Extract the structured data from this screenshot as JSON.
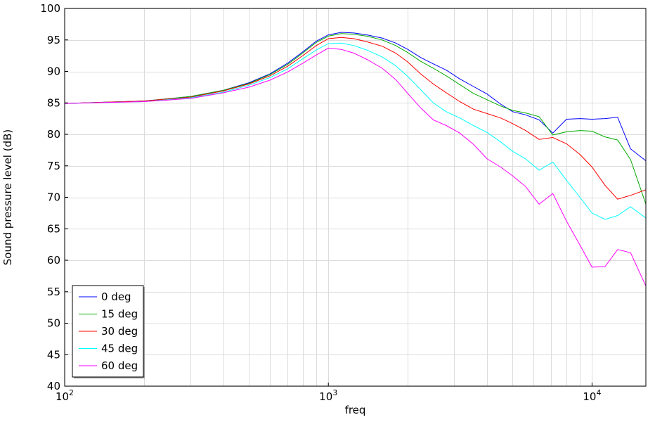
{
  "chart_data": {
    "type": "line",
    "title": "",
    "xlabel": "freq",
    "ylabel": "Sound pressure level (dB)",
    "xscale": "log",
    "xlim": [
      100,
      16000
    ],
    "ylim": [
      40,
      100
    ],
    "x_ticks": [
      {
        "value": 100,
        "base": "10",
        "exp": "2"
      },
      {
        "value": 1000,
        "base": "10",
        "exp": "3"
      },
      {
        "value": 10000,
        "base": "10",
        "exp": "4"
      }
    ],
    "y_ticks": [
      "40",
      "45",
      "50",
      "55",
      "60",
      "65",
      "70",
      "75",
      "80",
      "85",
      "90",
      "95",
      "100"
    ],
    "grid": true,
    "legend_position": "bottom-left",
    "x": [
      100,
      200,
      300,
      400,
      500,
      600,
      700,
      800,
      900,
      1000,
      1120,
      1250,
      1400,
      1600,
      1800,
      2000,
      2240,
      2500,
      2800,
      3150,
      3550,
      4000,
      4500,
      5000,
      5600,
      6300,
      7100,
      8000,
      9000,
      10000,
      11200,
      12500,
      14000,
      16000
    ],
    "series": [
      {
        "name": "0 deg",
        "color": "#0000ff",
        "values": [
          84.9,
          85.3,
          86.0,
          87.0,
          88.2,
          89.6,
          91.3,
          93.1,
          94.8,
          95.8,
          96.2,
          96.1,
          95.8,
          95.3,
          94.5,
          93.5,
          92.2,
          91.2,
          90.2,
          88.8,
          87.6,
          86.4,
          84.8,
          83.6,
          83.1,
          82.3,
          80.2,
          82.4,
          82.5,
          82.4,
          82.5,
          82.7,
          77.7,
          75.8
        ]
      },
      {
        "name": "15 deg",
        "color": "#00aa00",
        "values": [
          84.9,
          85.3,
          86.0,
          87.0,
          88.1,
          89.5,
          91.1,
          92.9,
          94.6,
          95.6,
          96.0,
          95.9,
          95.6,
          95.0,
          94.1,
          93.0,
          91.6,
          90.5,
          89.3,
          87.9,
          86.5,
          85.5,
          84.5,
          83.8,
          83.4,
          82.8,
          79.9,
          80.4,
          80.6,
          80.5,
          79.6,
          79.1,
          76.0,
          68.9
        ]
      },
      {
        "name": "30 deg",
        "color": "#ff0000",
        "values": [
          84.9,
          85.3,
          85.9,
          86.9,
          88.0,
          89.3,
          90.8,
          92.5,
          94.1,
          95.2,
          95.4,
          95.2,
          94.7,
          94.0,
          92.9,
          91.5,
          89.6,
          88.0,
          86.6,
          85.2,
          84.0,
          83.3,
          82.6,
          81.7,
          80.6,
          79.2,
          79.5,
          78.5,
          76.8,
          74.8,
          71.9,
          69.7,
          70.3,
          71.2
        ]
      },
      {
        "name": "45 deg",
        "color": "#00ffff",
        "values": [
          84.9,
          85.2,
          85.8,
          86.7,
          87.8,
          89.0,
          90.4,
          92.0,
          93.4,
          94.4,
          94.5,
          94.1,
          93.4,
          92.3,
          90.9,
          89.2,
          87.1,
          85.0,
          83.6,
          82.6,
          81.4,
          80.3,
          78.8,
          77.3,
          76.1,
          74.3,
          75.6,
          72.7,
          70.0,
          67.5,
          66.5,
          67.1,
          68.5,
          66.7
        ]
      },
      {
        "name": "60 deg",
        "color": "#ff00ff",
        "values": [
          84.9,
          85.2,
          85.7,
          86.6,
          87.5,
          88.6,
          89.9,
          91.3,
          92.6,
          93.7,
          93.5,
          92.9,
          91.9,
          90.5,
          88.7,
          86.5,
          84.2,
          82.3,
          81.4,
          80.2,
          78.4,
          76.1,
          74.8,
          73.4,
          71.7,
          68.9,
          70.6,
          66.2,
          62.4,
          58.9,
          59.0,
          61.7,
          61.2,
          55.9
        ]
      }
    ]
  }
}
